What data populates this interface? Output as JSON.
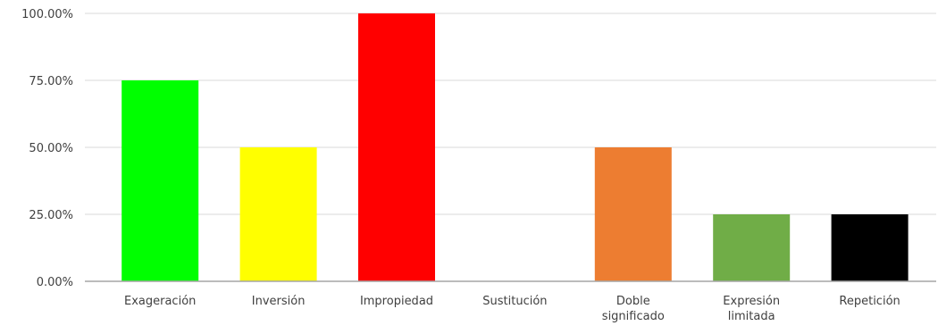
{
  "chart_data": {
    "type": "bar",
    "categories": [
      "Exageración",
      "Inversión",
      "Impropiedad",
      "Sustitución",
      "Doble significado",
      "Expresión limitada",
      "Repetición"
    ],
    "category_lines": [
      [
        "Exageración"
      ],
      [
        "Inversión"
      ],
      [
        "Impropiedad"
      ],
      [
        "Sustitución"
      ],
      [
        "Doble",
        "significado"
      ],
      [
        "Expresión",
        "limitada"
      ],
      [
        "Repetición"
      ]
    ],
    "values": [
      0.75,
      0.5,
      1.0,
      0.0,
      0.5,
      0.25,
      0.25
    ],
    "colors": [
      "#00ff00",
      "#ffff00",
      "#ff0000",
      "#ffffff",
      "#ed7d31",
      "#70ad47",
      "#000000"
    ],
    "ylim": [
      0,
      1
    ],
    "yticks": [
      0,
      0.25,
      0.5,
      0.75,
      1.0
    ],
    "ytick_labels": [
      "0.00%",
      "25.00%",
      "50.00%",
      "75.00%",
      "100.00%"
    ],
    "grid": true,
    "gridline_color": "#d9d9d9",
    "axis_color": "#a6a6a6",
    "legend": "none"
  }
}
